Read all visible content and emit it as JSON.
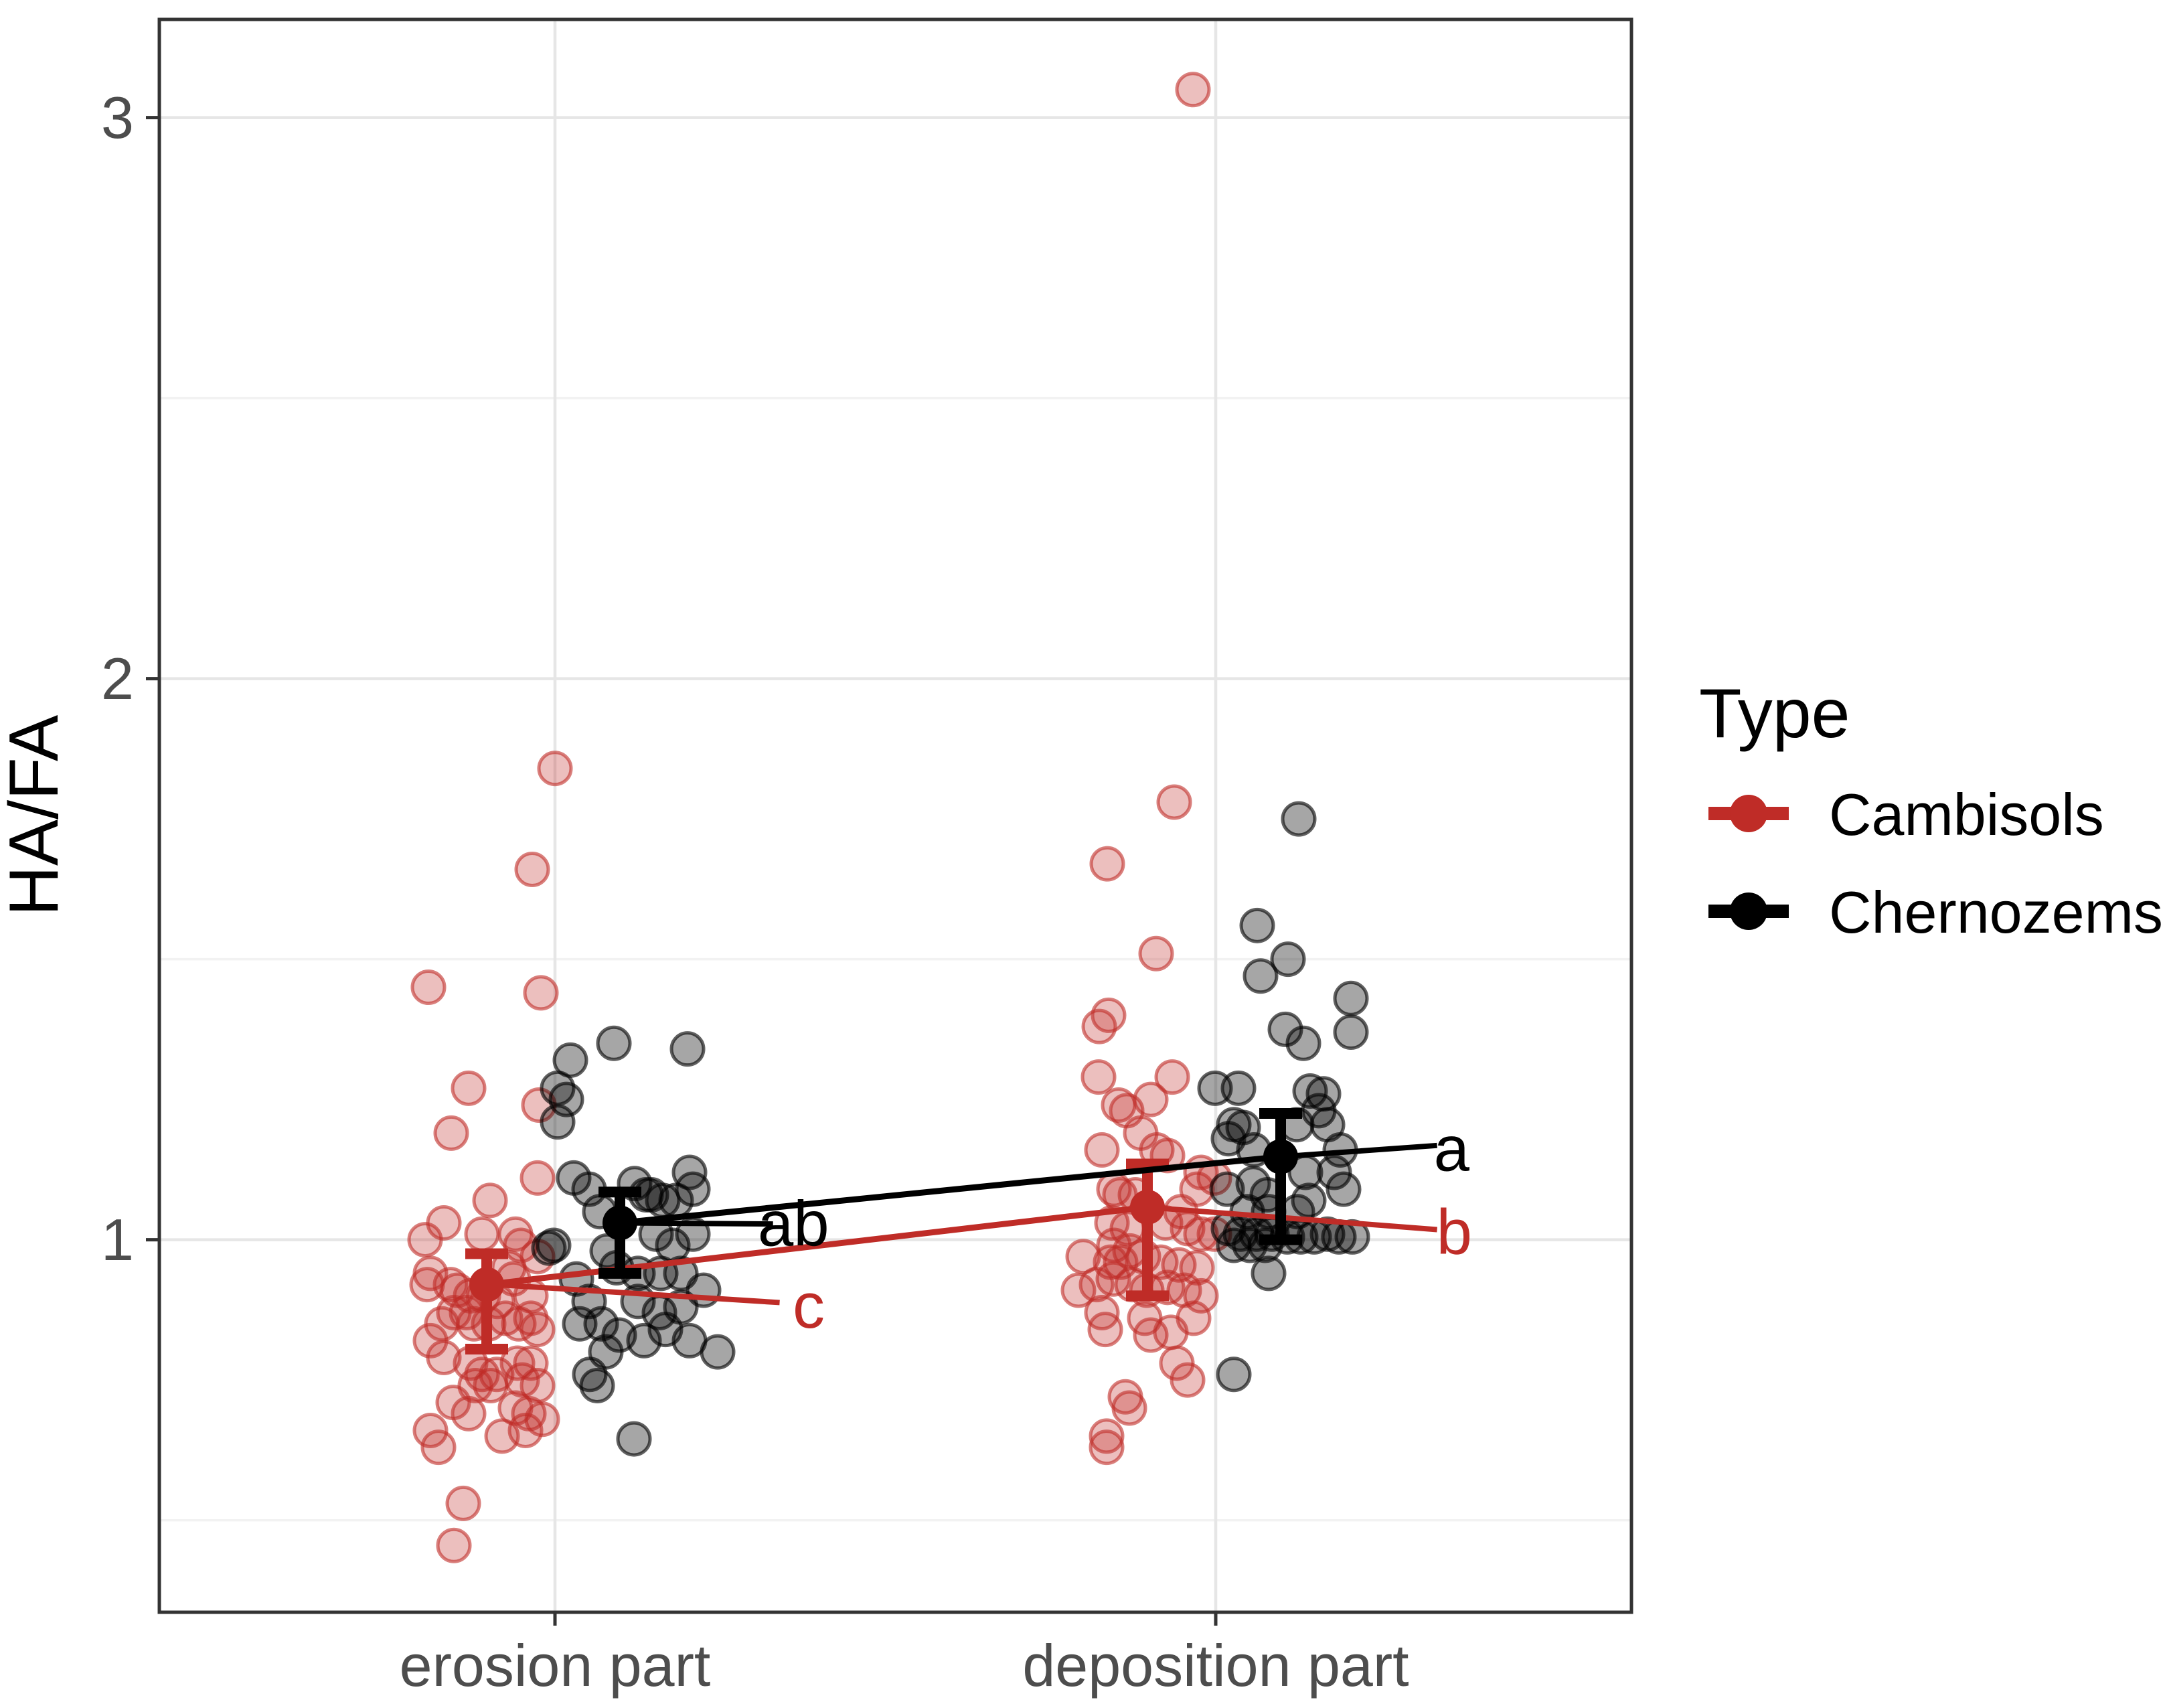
{
  "chart_data": {
    "type": "scatter",
    "title": "",
    "xlabel": "",
    "ylabel": "HA/FA",
    "categories": [
      "erosion part",
      "deposition part"
    ],
    "y_ticks": [
      1,
      2,
      3
    ],
    "y_minor_ticks": [
      0.5,
      1.5,
      2.5
    ],
    "ylim": [
      0.336,
      3.175
    ],
    "grid": "on",
    "legend": {
      "title": "Type",
      "position": "right",
      "entries": [
        {
          "label": "Cambisols",
          "color": "#bf2c27"
        },
        {
          "label": "Chernozems",
          "color": "#000000"
        }
      ]
    },
    "series": [
      {
        "name": "Cambisols",
        "color": "#bf2c27",
        "groups": [
          {
            "category": "erosion part",
            "mean": 0.92,
            "ci_low": 0.805,
            "ci_high": 0.975,
            "cld_letter": "c",
            "points": [
              [
                102,
                1.84
              ],
              [
                68,
                1.66
              ],
              [
                -87,
                1.45
              ],
              [
                81,
                1.44
              ],
              [
                -27,
                1.27
              ],
              [
                78,
                1.24
              ],
              [
                -53,
                1.19
              ],
              [
                76,
                1.11
              ],
              [
                5,
                1.07
              ],
              [
                -64,
                1.03
              ],
              [
                -7,
                1.01
              ],
              [
                43,
                1.01
              ],
              [
                -92,
                1.0
              ],
              [
                51,
                0.99
              ],
              [
                76,
                0.97
              ],
              [
                33,
                0.95
              ],
              [
                -84,
                0.94
              ],
              [
                40,
                0.93
              ],
              [
                -54,
                0.92
              ],
              [
                -89,
                0.92
              ],
              [
                -44,
                0.91
              ],
              [
                -24,
                0.9
              ],
              [
                66,
                0.9
              ],
              [
                -5,
                0.9
              ],
              [
                16,
                0.89
              ],
              [
                -30,
                0.87
              ],
              [
                -49,
                0.87
              ],
              [
                28,
                0.86
              ],
              [
                66,
                0.86
              ],
              [
                -19,
                0.85
              ],
              [
                48,
                0.85
              ],
              [
                -67,
                0.85
              ],
              [
                3,
                0.85
              ],
              [
                76,
                0.84
              ],
              [
                -84,
                0.82
              ],
              [
                -64,
                0.79
              ],
              [
                46,
                0.78
              ],
              [
                66,
                0.78
              ],
              [
                -24,
                0.78
              ],
              [
                15,
                0.76
              ],
              [
                -7,
                0.76
              ],
              [
                53,
                0.75
              ],
              [
                -17,
                0.74
              ],
              [
                6,
                0.74
              ],
              [
                76,
                0.74
              ],
              [
                -50,
                0.71
              ],
              [
                43,
                0.7
              ],
              [
                -27,
                0.69
              ],
              [
                63,
                0.69
              ],
              [
                83,
                0.68
              ],
              [
                -84,
                0.66
              ],
              [
                58,
                0.66
              ],
              [
                23,
                0.65
              ],
              [
                -72,
                0.63
              ],
              [
                -35,
                0.53
              ],
              [
                -49,
                0.455
              ]
            ]
          },
          {
            "category": "deposition part",
            "mean": 1.058,
            "ci_low": 0.9,
            "ci_high": 1.135,
            "cld_letter": "b",
            "points": [
              [
                68,
                3.05
              ],
              [
                40,
                1.78
              ],
              [
                -60,
                1.67
              ],
              [
                13,
                1.51
              ],
              [
                -58,
                1.4
              ],
              [
                -72,
                1.38
              ],
              [
                -73,
                1.29
              ],
              [
                37,
                1.29
              ],
              [
                -43,
                1.24
              ],
              [
                5,
                1.25
              ],
              [
                -31,
                1.23
              ],
              [
                -10,
                1.19
              ],
              [
                -68,
                1.16
              ],
              [
                14,
                1.16
              ],
              [
                30,
                1.15
              ],
              [
                80,
                1.12
              ],
              [
                100,
                1.11
              ],
              [
                -50,
                1.09
              ],
              [
                74,
                1.09
              ],
              [
                -41,
                1.08
              ],
              [
                -18,
                1.08
              ],
              [
                50,
                1.05
              ],
              [
                -53,
                1.03
              ],
              [
                -30,
                1.02
              ],
              [
                27,
                1.03
              ],
              [
                60,
                1.02
              ],
              [
                80,
                1.01
              ],
              [
                100,
                1.01
              ],
              [
                -50,
                0.99
              ],
              [
                -26,
                0.98
              ],
              [
                -55,
                0.96
              ],
              [
                -40,
                0.96
              ],
              [
                -6,
                0.97
              ],
              [
                20,
                0.96
              ],
              [
                47,
                0.955
              ],
              [
                74,
                0.95
              ],
              [
                -96,
                0.97
              ],
              [
                -103,
                0.91
              ],
              [
                -76,
                0.92
              ],
              [
                -51,
                0.93
              ],
              [
                -23,
                0.92
              ],
              [
                -1,
                0.91
              ],
              [
                30,
                0.915
              ],
              [
                55,
                0.91
              ],
              [
                80,
                0.9
              ],
              [
                -63,
                0.84
              ],
              [
                -68,
                0.87
              ],
              [
                -4,
                0.86
              ],
              [
                5,
                0.83
              ],
              [
                35,
                0.835
              ],
              [
                69,
                0.86
              ],
              [
                44,
                0.78
              ],
              [
                60,
                0.75
              ],
              [
                -33,
                0.72
              ],
              [
                -27,
                0.7
              ],
              [
                -61,
                0.65
              ],
              [
                -61,
                0.63
              ]
            ]
          }
        ]
      },
      {
        "name": "Chernozems",
        "color": "#000000",
        "groups": [
          {
            "category": "erosion part",
            "mean": 1.03,
            "ci_low": 0.94,
            "ci_high": 1.085,
            "cld_letter": "ab",
            "points": [
              [
                -74,
                1.32
              ],
              [
                -9,
                1.35
              ],
              [
                101,
                1.34
              ],
              [
                -93,
                1.27
              ],
              [
                -80,
                1.25
              ],
              [
                -93,
                1.21
              ],
              [
                -69,
                1.11
              ],
              [
                22,
                1.1
              ],
              [
                104,
                1.12
              ],
              [
                39,
                1.08
              ],
              [
                64,
                1.07
              ],
              [
                84,
                1.07
              ],
              [
                109,
                1.09
              ],
              [
                -46,
                1.09
              ],
              [
                -30,
                1.05
              ],
              [
                47,
                1.08
              ],
              [
                -99,
                0.99
              ],
              [
                -106,
                0.985
              ],
              [
                54,
                1.01
              ],
              [
                79,
                0.99
              ],
              [
                109,
                1.01
              ],
              [
                -19,
                0.98
              ],
              [
                -5,
                0.95
              ],
              [
                27,
                0.94
              ],
              [
                61,
                0.94
              ],
              [
                91,
                0.94
              ],
              [
                27,
                0.89
              ],
              [
                59,
                0.87
              ],
              [
                91,
                0.88
              ],
              [
                125,
                0.91
              ],
              [
                -46,
                0.89
              ],
              [
                -65,
                0.93
              ],
              [
                -28,
                0.85
              ],
              [
                -1,
                0.83
              ],
              [
                36,
                0.82
              ],
              [
                68,
                0.84
              ],
              [
                104,
                0.82
              ],
              [
                -21,
                0.8
              ],
              [
                -45,
                0.76
              ],
              [
                -60,
                0.85
              ],
              [
                -34,
                0.74
              ],
              [
                146,
                0.8
              ],
              [
                21,
                0.645
              ]
            ]
          },
          {
            "category": "deposition part",
            "mean": 1.148,
            "ci_low": 1.0,
            "ci_high": 1.225,
            "cld_letter": "a",
            "points": [
              [
                27,
                1.75
              ],
              [
                -35,
                1.56
              ],
              [
                11,
                1.5
              ],
              [
                -30,
                1.47
              ],
              [
                105,
                1.43
              ],
              [
                105,
                1.37
              ],
              [
                7,
                1.375
              ],
              [
                34,
                1.35
              ],
              [
                -98,
                1.27
              ],
              [
                -63,
                1.27
              ],
              [
                44,
                1.265
              ],
              [
                64,
                1.26
              ],
              [
                57,
                1.23
              ],
              [
                70,
                1.205
              ],
              [
                -70,
                1.205
              ],
              [
                -56,
                1.2
              ],
              [
                -78,
                1.18
              ],
              [
                -40,
                1.16
              ],
              [
                24,
                1.205
              ],
              [
                89,
                1.16
              ],
              [
                80,
                1.12
              ],
              [
                37,
                1.12
              ],
              [
                -41,
                1.1
              ],
              [
                -80,
                1.09
              ],
              [
                -20,
                1.08
              ],
              [
                42,
                1.07
              ],
              [
                94,
                1.09
              ],
              [
                -50,
                1.05
              ],
              [
                -18,
                1.05
              ],
              [
                25,
                1.05
              ],
              [
                -78,
                1.02
              ],
              [
                -60,
                1.01
              ],
              [
                -36,
                1.01
              ],
              [
                -13,
                1.01
              ],
              [
                10,
                1.005
              ],
              [
                30,
                1.005
              ],
              [
                50,
                1.005
              ],
              [
                70,
                1.01
              ],
              [
                87,
                1.005
              ],
              [
                107,
                1.005
              ],
              [
                -70,
                0.99
              ],
              [
                -46,
                0.99
              ],
              [
                -23,
                0.99
              ],
              [
                -18,
                0.94
              ],
              [
                -70,
                0.76
              ]
            ]
          }
        ]
      }
    ],
    "annotations": [
      {
        "text": "ab",
        "color": "#000000",
        "x": 0.361,
        "y": 1.028,
        "leader_from": [
          0.0983,
          1.03
        ],
        "leader_to": [
          0.33,
          1.028
        ]
      },
      {
        "text": "c",
        "color": "#bf2c27",
        "x": 0.384,
        "y": 0.882,
        "leader_from": [
          -0.1033,
          0.921
        ],
        "leader_to": [
          0.34,
          0.888
        ]
      },
      {
        "text": "a",
        "color": "#000000",
        "x": 1.357,
        "y": 1.162,
        "leader_from": [
          1.0983,
          1.148
        ],
        "leader_to": [
          1.335,
          1.168
        ]
      },
      {
        "text": "b",
        "color": "#bf2c27",
        "x": 1.361,
        "y": 1.013,
        "leader_from": [
          0.8957,
          1.058
        ],
        "leader_to": [
          1.335,
          1.018
        ]
      }
    ]
  }
}
